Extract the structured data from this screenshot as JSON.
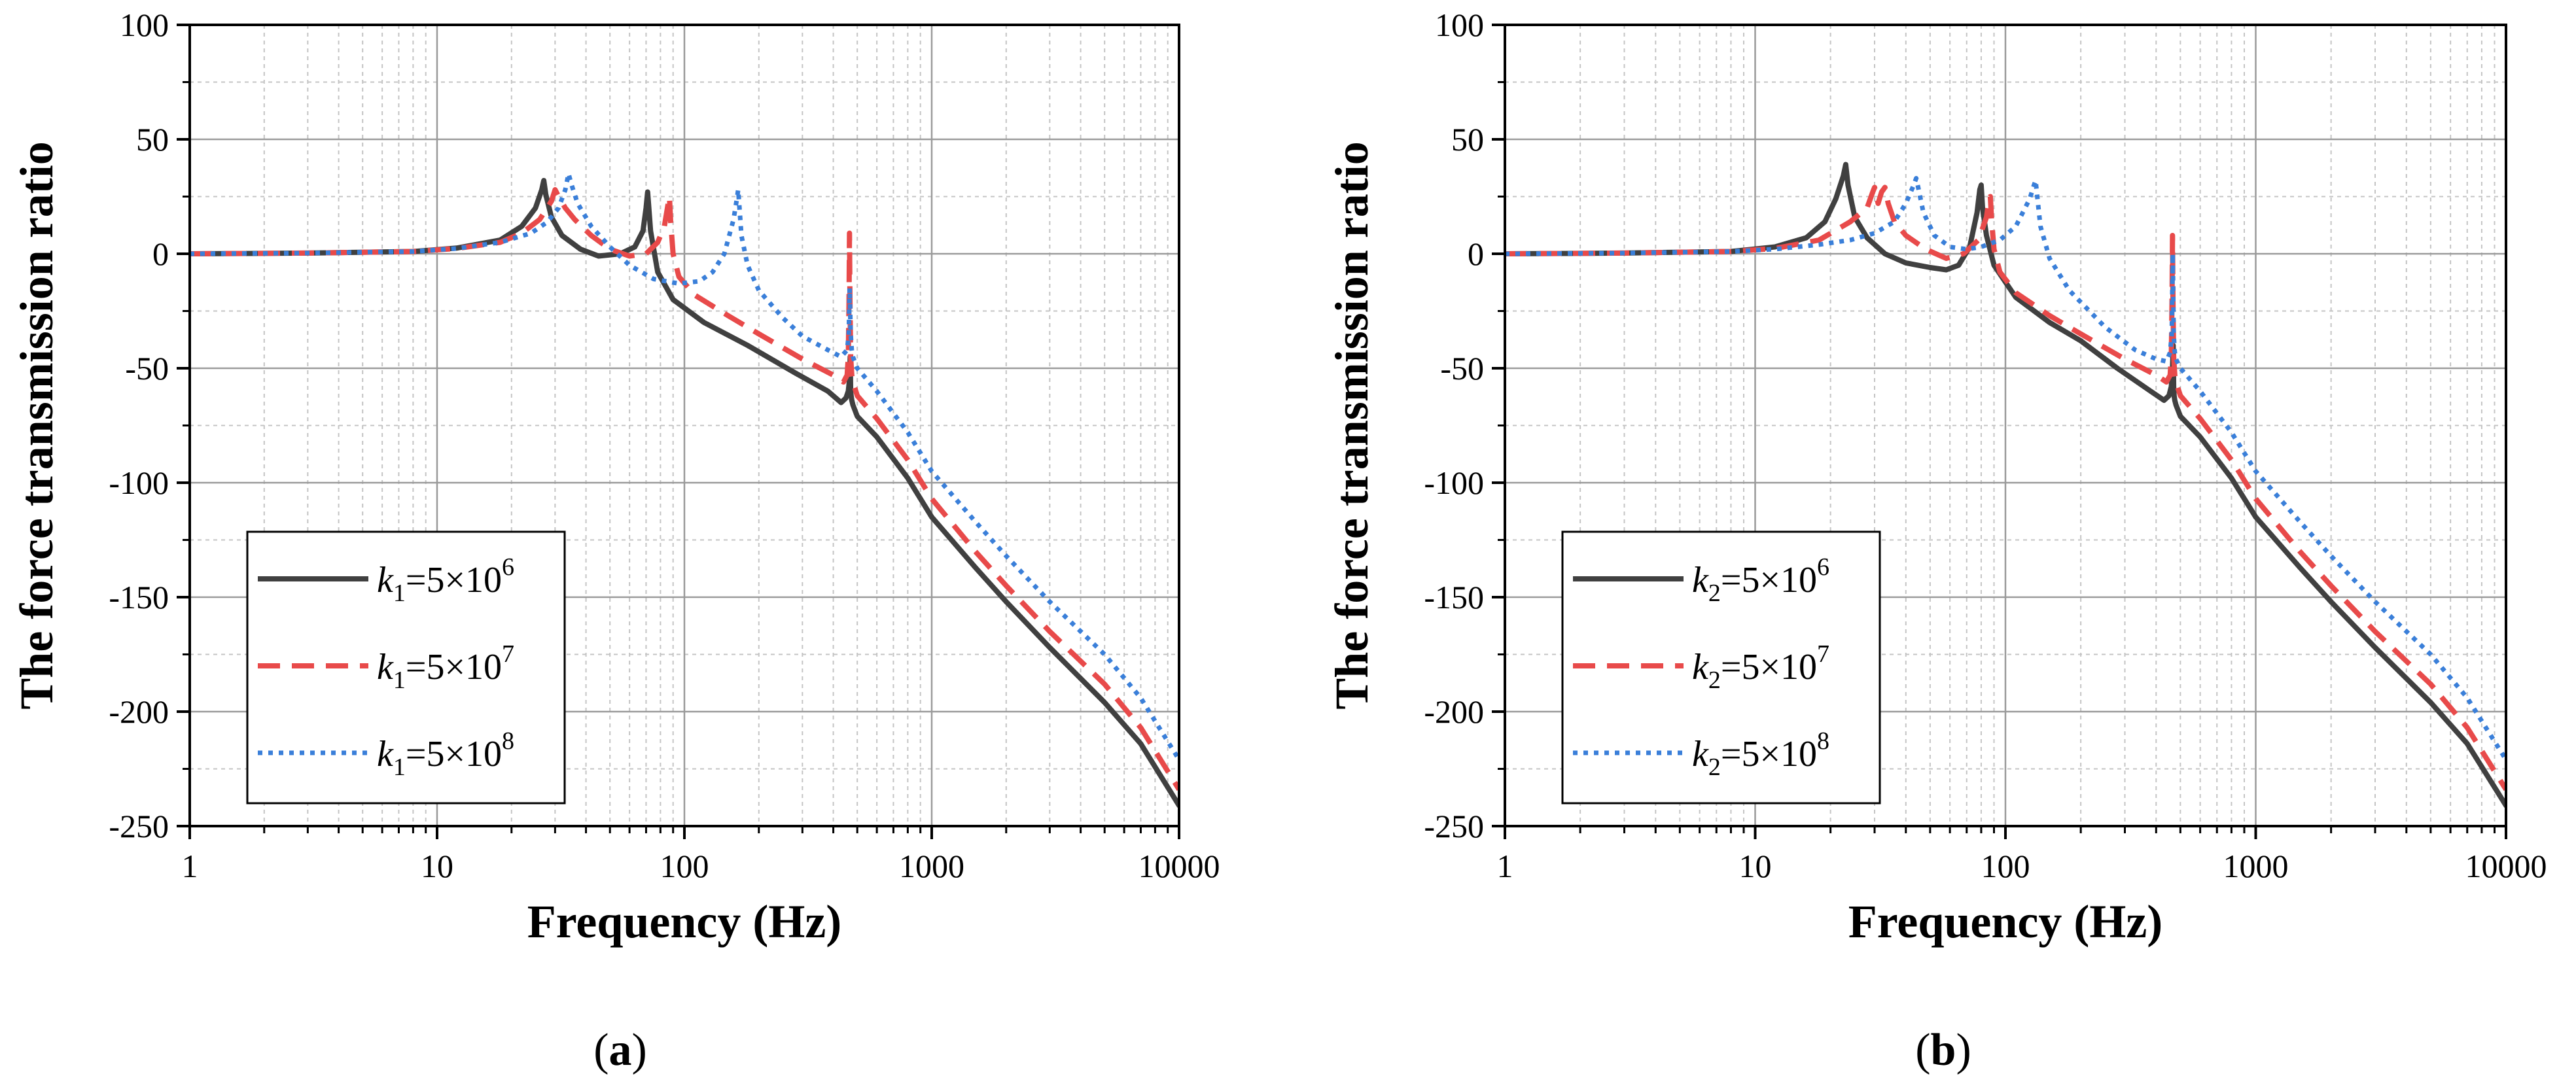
{
  "chart_data": [
    {
      "type": "line",
      "panel_label": "a",
      "xlabel": "Frequency (Hz)",
      "ylabel": "The force transmission ratio",
      "xscale": "log",
      "xlim": [
        1,
        10000
      ],
      "ylim": [
        -250,
        100
      ],
      "xticks": [
        1,
        10,
        100,
        1000,
        10000
      ],
      "xtick_labels": [
        "1",
        "10",
        "100",
        "1000",
        "10000"
      ],
      "yticks": [
        100,
        50,
        0,
        -50,
        -100,
        -150,
        -200,
        -250
      ],
      "ytick_labels": [
        "100",
        "50",
        "0",
        "-50",
        "-100",
        "-150",
        "-200",
        "-250"
      ],
      "grid": true,
      "legend_position": "bottom-left",
      "series": [
        {
          "legend": {
            "var": "k",
            "sub": "1",
            "eq": "=5×10",
            "exp": "6"
          },
          "color": "#404040",
          "style": "solid",
          "x": [
            1,
            3,
            8,
            12,
            18,
            22,
            25,
            26.5,
            27,
            27.5,
            29,
            32,
            38,
            45,
            55,
            63,
            68,
            70,
            71,
            73,
            78,
            90,
            120,
            180,
            280,
            380,
            430,
            450,
            460,
            465,
            468,
            470,
            472,
            475,
            480,
            500,
            600,
            800,
            1000,
            1500,
            2000,
            3000,
            5000,
            7000,
            10000
          ],
          "y": [
            0,
            0.3,
            1,
            2.5,
            6,
            12,
            20,
            28,
            32,
            26,
            16,
            8,
            2,
            -1,
            0,
            3,
            10,
            20,
            27,
            10,
            -8,
            -20,
            -30,
            -40,
            -52,
            -60,
            -65,
            -63,
            -60,
            -55,
            -45,
            -60,
            -62,
            -64,
            -66,
            -71,
            -80,
            -98,
            -115,
            -137,
            -152,
            -172,
            -196,
            -214,
            -241
          ]
        },
        {
          "legend": {
            "var": "k",
            "sub": "1",
            "eq": "=5×10",
            "exp": "7"
          },
          "color": "#e84a4a",
          "style": "dashed",
          "x": [
            1,
            3,
            8,
            12,
            18,
            22,
            26,
            29,
            30,
            31,
            33,
            36,
            42,
            50,
            60,
            70,
            78,
            83,
            86,
            87,
            88,
            90,
            95,
            110,
            150,
            200,
            300,
            400,
            440,
            455,
            460,
            463,
            465,
            467,
            470,
            475,
            480,
            500,
            600,
            800,
            1000,
            1500,
            2000,
            3000,
            5000,
            7000,
            10000
          ],
          "y": [
            0,
            0.3,
            1,
            2.3,
            5,
            9,
            15,
            23,
            28,
            25,
            20,
            15,
            8,
            2,
            -1,
            0,
            5,
            12,
            22,
            25,
            14,
            0,
            -10,
            -18,
            -27,
            -35,
            -46,
            -53,
            -56,
            -53,
            -45,
            -20,
            9,
            -20,
            -45,
            -53,
            -56,
            -62,
            -72,
            -90,
            -107,
            -130,
            -145,
            -165,
            -188,
            -207,
            -234
          ]
        },
        {
          "legend": {
            "var": "k",
            "sub": "1",
            "eq": "=5×10",
            "exp": "8"
          },
          "color": "#3a7fd9",
          "style": "dotted",
          "x": [
            1,
            3,
            8,
            12,
            18,
            24,
            28,
            31,
            33,
            34,
            35,
            37,
            42,
            50,
            60,
            75,
            95,
            115,
            130,
            145,
            158,
            163,
            165,
            167,
            170,
            180,
            200,
            250,
            300,
            380,
            430,
            455,
            462,
            466,
            470,
            475,
            480,
            500,
            600,
            800,
            1000,
            1500,
            2000,
            3000,
            5000,
            7000,
            10000
          ],
          "y": [
            0,
            0.3,
            1,
            2.3,
            5,
            9,
            14,
            20,
            28,
            35,
            30,
            22,
            12,
            3,
            -5,
            -11,
            -13,
            -12,
            -8,
            0,
            15,
            24,
            28,
            20,
            8,
            -5,
            -16,
            -28,
            -36,
            -42,
            -45,
            -42,
            -35,
            -15,
            -35,
            -42,
            -45,
            -50,
            -60,
            -78,
            -95,
            -117,
            -132,
            -152,
            -175,
            -194,
            -221
          ]
        }
      ]
    },
    {
      "type": "line",
      "panel_label": "b",
      "xlabel": "Frequency (Hz)",
      "ylabel": "The force transmission ratio",
      "xscale": "log",
      "xlim": [
        1,
        10000
      ],
      "ylim": [
        -250,
        100
      ],
      "xticks": [
        1,
        10,
        100,
        1000,
        10000
      ],
      "xtick_labels": [
        "1",
        "10",
        "100",
        "1000",
        "10000"
      ],
      "yticks": [
        100,
        50,
        0,
        -50,
        -100,
        -150,
        -200,
        -250
      ],
      "ytick_labels": [
        "100",
        "50",
        "0",
        "-50",
        "-100",
        "-150",
        "-200",
        "-250"
      ],
      "grid": true,
      "legend_position": "bottom-left",
      "series": [
        {
          "legend": {
            "var": "k",
            "sub": "2",
            "eq": "=5×10",
            "exp": "6"
          },
          "color": "#404040",
          "style": "solid",
          "x": [
            1,
            3,
            8,
            12,
            16,
            19,
            21,
            22.5,
            23,
            23.5,
            25,
            28,
            33,
            40,
            50,
            58,
            65,
            72,
            77,
            79,
            80,
            81,
            84,
            90,
            110,
            150,
            200,
            280,
            380,
            430,
            450,
            460,
            465,
            468,
            470,
            472,
            475,
            480,
            500,
            600,
            800,
            1000,
            1500,
            2000,
            3000,
            5000,
            7000,
            10000
          ],
          "y": [
            0,
            0.3,
            1,
            3,
            7,
            14,
            24,
            34,
            39,
            30,
            16,
            7,
            0,
            -4,
            -6,
            -7,
            -5,
            3,
            18,
            28,
            30,
            20,
            8,
            -5,
            -19,
            -30,
            -38,
            -50,
            -60,
            -64,
            -62,
            -58,
            -50,
            -40,
            -58,
            -62,
            -64,
            -66,
            -71,
            -80,
            -98,
            -115,
            -137,
            -152,
            -172,
            -196,
            -214,
            -241
          ]
        },
        {
          "legend": {
            "var": "k",
            "sub": "2",
            "eq": "=5×10",
            "exp": "7"
          },
          "color": "#e84a4a",
          "style": "dashed",
          "x": [
            1,
            3,
            8,
            12,
            18,
            24,
            28,
            29.5,
            30,
            31,
            32,
            33,
            34,
            36,
            40,
            48,
            58,
            68,
            78,
            84,
            86,
            87,
            88,
            90,
            95,
            110,
            150,
            200,
            300,
            400,
            440,
            455,
            460,
            463,
            465,
            467,
            470,
            475,
            480,
            500,
            600,
            800,
            1000,
            1500,
            2000,
            3000,
            5000,
            7000,
            10000
          ],
          "y": [
            0,
            0.3,
            1,
            2.3,
            6,
            14,
            20,
            27,
            29,
            22,
            27,
            29,
            22,
            14,
            8,
            2,
            -2,
            0,
            6,
            16,
            24,
            25,
            15,
            2,
            -8,
            -17,
            -27,
            -35,
            -46,
            -53,
            -56,
            -53,
            -45,
            -20,
            8,
            -20,
            -45,
            -53,
            -56,
            -62,
            -72,
            -90,
            -107,
            -130,
            -145,
            -165,
            -188,
            -207,
            -234
          ]
        },
        {
          "legend": {
            "var": "k",
            "sub": "2",
            "eq": "=5×10",
            "exp": "8"
          },
          "color": "#3a7fd9",
          "style": "dotted",
          "x": [
            1,
            3,
            8,
            12,
            18,
            24,
            30,
            36,
            40,
            43,
            44,
            45,
            47,
            52,
            60,
            70,
            80,
            95,
            110,
            125,
            130,
            132,
            134,
            138,
            150,
            180,
            250,
            330,
            400,
            440,
            455,
            462,
            466,
            470,
            475,
            480,
            500,
            600,
            800,
            1000,
            1500,
            2000,
            3000,
            5000,
            7000,
            10000
          ],
          "y": [
            0,
            0.3,
            1,
            2,
            4,
            6,
            9,
            14,
            22,
            30,
            33,
            28,
            18,
            8,
            3,
            2,
            3,
            6,
            12,
            24,
            30,
            32,
            25,
            12,
            -2,
            -16,
            -32,
            -42,
            -46,
            -47,
            -43,
            -35,
            0,
            -35,
            -43,
            -46,
            -50,
            -60,
            -78,
            -95,
            -117,
            -132,
            -152,
            -175,
            -194,
            -221
          ]
        }
      ]
    }
  ]
}
